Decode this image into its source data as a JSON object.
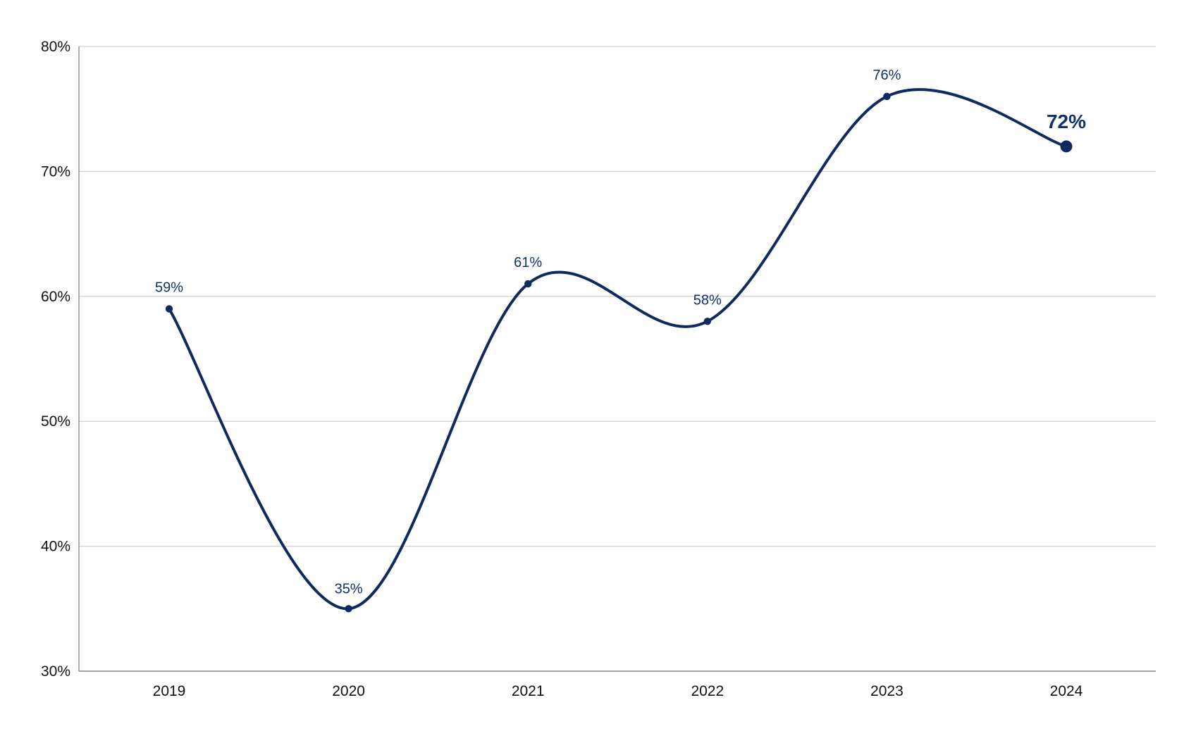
{
  "chart_data": {
    "type": "line",
    "title": "",
    "xlabel": "",
    "ylabel": "",
    "categories": [
      "2019",
      "2020",
      "2021",
      "2022",
      "2023",
      "2024"
    ],
    "series": [
      {
        "values": [
          59,
          35,
          61,
          58,
          76,
          72
        ],
        "labels": [
          "59%",
          "35%",
          "61%",
          "58%",
          "76%",
          "72%"
        ],
        "highlight_last": true
      }
    ],
    "ylim": [
      30,
      80
    ],
    "yticks": [
      30,
      40,
      50,
      60,
      70,
      80
    ],
    "ytick_labels": [
      "30%",
      "40%",
      "50%",
      "60%",
      "70%",
      "80%"
    ],
    "grid": true,
    "smooth": true,
    "line_color": "#0f2a5f",
    "label_color": "#12306b"
  }
}
